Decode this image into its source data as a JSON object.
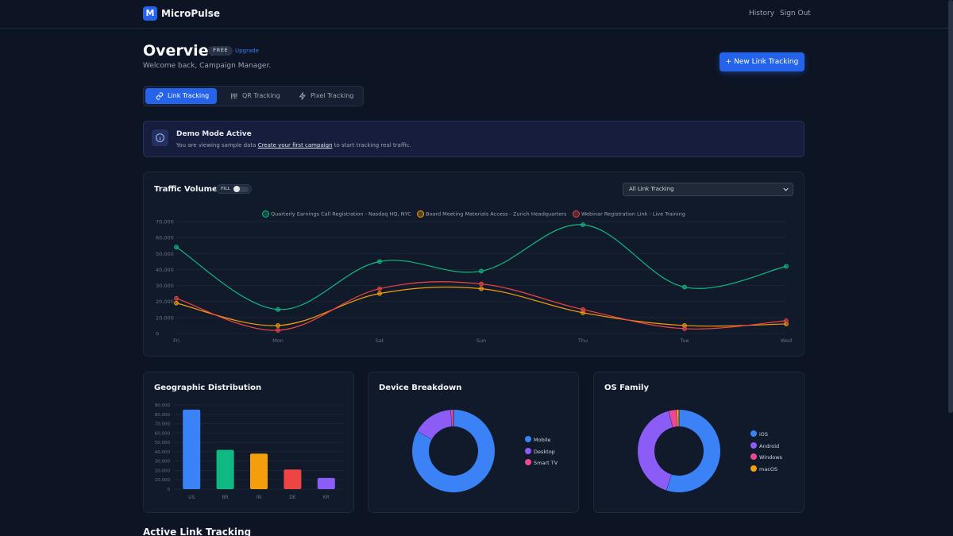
{
  "header": {
    "logo_letter": "M",
    "brand": "MicroPulse",
    "nav": [
      "History",
      "Sign Out"
    ]
  },
  "page": {
    "title": "Overview",
    "plan_badge": "FREE",
    "upgrade_link": "Upgrade",
    "welcome": "Welcome back, Campaign Manager.",
    "new_button": "+  New Link Tracking"
  },
  "tabs": [
    {
      "label": "Link Tracking",
      "icon": "link-icon",
      "active": true
    },
    {
      "label": "QR Tracking",
      "icon": "qr-icon",
      "active": false
    },
    {
      "label": "Pixel Tracking",
      "icon": "bolt-icon",
      "active": false
    }
  ],
  "demo_banner": {
    "title": "Demo Mode Active",
    "text_before": "You are viewing sample data ",
    "link_text": "Create your first campaign",
    "text_after": " to start tracking real traffic."
  },
  "traffic": {
    "title": "Traffic Volume",
    "fill_label": "FILL",
    "fill_enabled": false,
    "select_value": "All Link Tracking"
  },
  "geo": {
    "title": "Geographic Distribution"
  },
  "device": {
    "title": "Device Breakdown"
  },
  "os": {
    "title": "OS Family"
  },
  "active_section_title": "Active Link Tracking",
  "colors": {
    "accent": "#2563eb",
    "green": "#10b981",
    "orange": "#f59e0b",
    "red": "#ef4444",
    "blue": "#3b82f6",
    "purple": "#8b5cf6",
    "pink": "#ec4899"
  },
  "chart_data": [
    {
      "type": "line",
      "title": "Traffic Volume",
      "categories": [
        "Fri",
        "Mon",
        "Sat",
        "Sun",
        "Thu",
        "Tue",
        "Wed"
      ],
      "ylim": [
        0,
        70000
      ],
      "yticks": [
        0,
        10000,
        20000,
        30000,
        40000,
        50000,
        60000,
        70000
      ],
      "legend_position": "top-center",
      "series": [
        {
          "name": "Quarterly Earnings Call Registration - Nasdaq HQ, NYC",
          "color": "#10b981",
          "values": [
            54000,
            15000,
            45000,
            39000,
            68000,
            29000,
            42000
          ]
        },
        {
          "name": "Board Meeting Materials Access - Zurich Headquarters",
          "color": "#f59e0b",
          "values": [
            19000,
            5000,
            25000,
            28000,
            13000,
            5000,
            6000
          ]
        },
        {
          "name": "Webinar Registration Link - Live Training",
          "color": "#ef4444",
          "values": [
            22000,
            2000,
            28000,
            31000,
            15000,
            3000,
            8000
          ]
        }
      ]
    },
    {
      "type": "bar",
      "title": "Geographic Distribution",
      "categories": [
        "US",
        "BR",
        "IN",
        "DE",
        "KR"
      ],
      "values": [
        85000,
        42000,
        38000,
        21000,
        12000
      ],
      "colors": [
        "#3b82f6",
        "#10b981",
        "#f59e0b",
        "#ef4444",
        "#8b5cf6"
      ],
      "ylim": [
        0,
        90000
      ],
      "yticks": [
        0,
        10000,
        20000,
        30000,
        40000,
        50000,
        60000,
        70000,
        80000,
        90000
      ]
    },
    {
      "type": "pie",
      "title": "Device Breakdown",
      "labels": [
        "Mobile",
        "Desktop",
        "Smart TV"
      ],
      "values": [
        83,
        16,
        1
      ],
      "colors": [
        "#3b82f6",
        "#8b5cf6",
        "#ec4899"
      ]
    },
    {
      "type": "pie",
      "title": "OS Family",
      "labels": [
        "iOS",
        "Android",
        "Windows",
        "macOS"
      ],
      "values": [
        55,
        41,
        3,
        1
      ],
      "colors": [
        "#3b82f6",
        "#8b5cf6",
        "#ec4899",
        "#f59e0b"
      ]
    }
  ]
}
